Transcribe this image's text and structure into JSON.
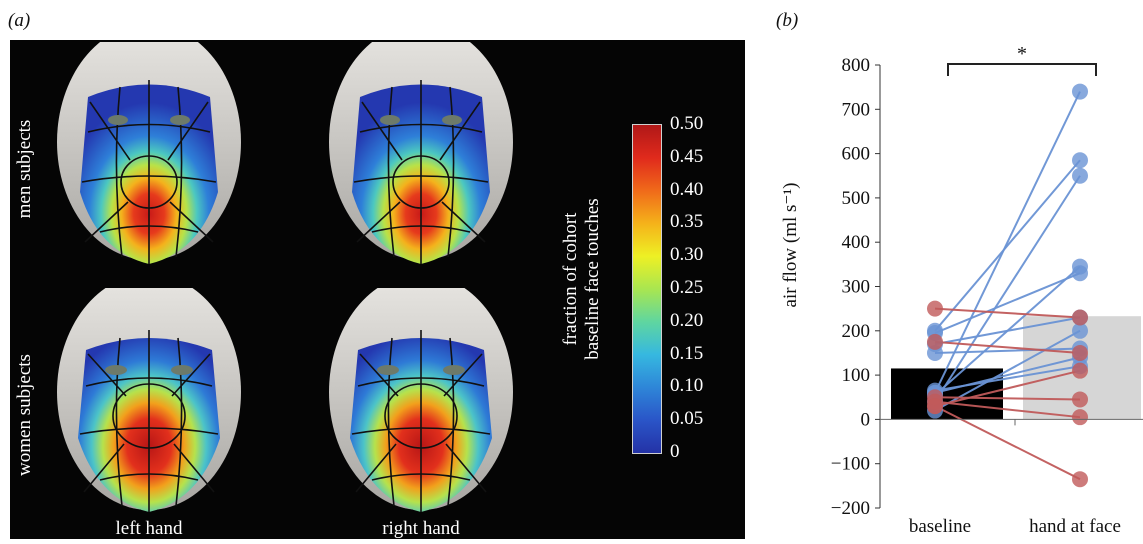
{
  "panel_a": {
    "label": "(a)",
    "rows": [
      "men subjects",
      "women subjects"
    ],
    "columns": [
      "left hand",
      "right hand"
    ],
    "colorbar": {
      "title_line1": "fraction of cohort",
      "title_line2": "baseline face touches",
      "ticks": [
        "0.50",
        "0.45",
        "0.40",
        "0.35",
        "0.30",
        "0.25",
        "0.20",
        "0.15",
        "0.10",
        "0.05",
        "0"
      ],
      "colors": [
        "#b01818",
        "#e02a1c",
        "#f06a1a",
        "#f5b21a",
        "#eef024",
        "#a9e650",
        "#5fd6a0",
        "#36b8e0",
        "#2e86d8",
        "#2a55c8",
        "#2432a6"
      ]
    }
  },
  "panel_b": {
    "label": "(b)",
    "significance": "*",
    "colors": {
      "blue": "#6a93d4",
      "red": "#c05a5a",
      "bar_baseline": "#000000",
      "bar_hand": "#d6d6d6"
    }
  },
  "chart_data": {
    "type": "bar",
    "title": "",
    "xlabel": "",
    "ylabel": "air flow (ml s⁻¹)",
    "categories": [
      "baseline",
      "hand at face"
    ],
    "values": [
      115,
      233
    ],
    "ylim": [
      -200,
      800
    ],
    "yticks": [
      "800",
      "700",
      "600",
      "500",
      "400",
      "300",
      "200",
      "100",
      "0",
      "−100",
      "−200"
    ],
    "ytick_values": [
      800,
      700,
      600,
      500,
      400,
      300,
      200,
      100,
      0,
      -100,
      -200
    ],
    "paired_points": [
      {
        "baseline": 60,
        "hand": 740,
        "color": "blue"
      },
      {
        "baseline": 200,
        "hand": 585,
        "color": "blue"
      },
      {
        "baseline": 40,
        "hand": 550,
        "color": "blue"
      },
      {
        "baseline": 55,
        "hand": 345,
        "color": "blue"
      },
      {
        "baseline": 195,
        "hand": 330,
        "color": "blue"
      },
      {
        "baseline": 170,
        "hand": 230,
        "color": "blue"
      },
      {
        "baseline": 20,
        "hand": 200,
        "color": "blue"
      },
      {
        "baseline": 150,
        "hand": 160,
        "color": "blue"
      },
      {
        "baseline": 60,
        "hand": 140,
        "color": "blue"
      },
      {
        "baseline": 65,
        "hand": 120,
        "color": "blue"
      },
      {
        "baseline": 250,
        "hand": 230,
        "color": "red"
      },
      {
        "baseline": 175,
        "hand": 150,
        "color": "red"
      },
      {
        "baseline": 30,
        "hand": 110,
        "color": "red"
      },
      {
        "baseline": 50,
        "hand": 45,
        "color": "red"
      },
      {
        "baseline": 40,
        "hand": 5,
        "color": "red"
      },
      {
        "baseline": 30,
        "hand": -135,
        "color": "red"
      }
    ],
    "grid": false,
    "legend": "none"
  }
}
